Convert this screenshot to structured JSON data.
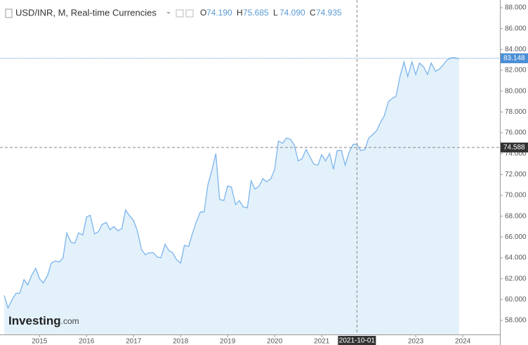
{
  "chart_data": {
    "type": "line",
    "title": "USD/INR, M, Real-time Currencies",
    "ohlc": [
      {
        "label": "O",
        "value": "74.190"
      },
      {
        "label": "H",
        "value": "75.685"
      },
      {
        "label": "L",
        "value": "74.090"
      },
      {
        "label": "C",
        "value": "74.935"
      }
    ],
    "logo": {
      "brand": "Investing",
      "suffix": ".com"
    },
    "color": "#7cb5ec",
    "fill_color": "#e3f1fb",
    "x": [
      2014.25,
      2014.33,
      2014.42,
      2014.5,
      2014.58,
      2014.67,
      2014.75,
      2014.83,
      2014.92,
      2015,
      2015.08,
      2015.17,
      2015.25,
      2015.33,
      2015.42,
      2015.5,
      2015.58,
      2015.67,
      2015.75,
      2015.83,
      2015.92,
      2016,
      2016.08,
      2016.17,
      2016.25,
      2016.33,
      2016.42,
      2016.5,
      2016.58,
      2016.67,
      2016.75,
      2016.83,
      2016.92,
      2017,
      2017.08,
      2017.17,
      2017.25,
      2017.33,
      2017.42,
      2017.5,
      2017.58,
      2017.67,
      2017.75,
      2017.83,
      2017.92,
      2018,
      2018.08,
      2018.17,
      2018.25,
      2018.33,
      2018.42,
      2018.5,
      2018.58,
      2018.67,
      2018.75,
      2018.83,
      2018.92,
      2019,
      2019.08,
      2019.17,
      2019.25,
      2019.33,
      2019.42,
      2019.5,
      2019.58,
      2019.67,
      2019.75,
      2019.83,
      2019.92,
      2020,
      2020.08,
      2020.17,
      2020.25,
      2020.33,
      2020.42,
      2020.5,
      2020.58,
      2020.67,
      2020.75,
      2020.83,
      2020.92,
      2021,
      2021.08,
      2021.17,
      2021.25,
      2021.33,
      2021.42,
      2021.5,
      2021.58,
      2021.67,
      2021.75,
      2021.83,
      2021.92,
      2022,
      2022.08,
      2022.17,
      2022.25,
      2022.33,
      2022.42,
      2022.5,
      2022.58,
      2022.67,
      2022.75,
      2022.83,
      2022.92,
      2023,
      2023.08,
      2023.17,
      2023.25,
      2023.33,
      2023.42,
      2023.5,
      2023.58,
      2023.67,
      2023.75,
      2023.83,
      2023.92
    ],
    "values": [
      60.4,
      59.2,
      60.0,
      60.6,
      60.6,
      61.9,
      61.4,
      62.3,
      63.0,
      62.0,
      61.6,
      62.3,
      63.5,
      63.7,
      63.6,
      64.0,
      66.4,
      65.5,
      65.4,
      66.4,
      66.2,
      67.9,
      68.1,
      66.3,
      66.5,
      67.2,
      67.4,
      66.7,
      67.0,
      66.6,
      66.8,
      68.6,
      68.0,
      67.6,
      66.6,
      64.8,
      64.3,
      64.5,
      64.5,
      64.1,
      64.0,
      65.3,
      64.7,
      64.5,
      63.8,
      63.5,
      65.2,
      65.1,
      66.3,
      67.4,
      68.4,
      68.4,
      71.0,
      72.5,
      74.0,
      69.6,
      69.5,
      70.9,
      70.8,
      69.1,
      69.5,
      68.9,
      68.8,
      71.4,
      70.6,
      70.9,
      71.6,
      71.3,
      71.6,
      72.5,
      75.2,
      75.0,
      75.5,
      75.4,
      74.8,
      73.3,
      73.5,
      74.4,
      73.7,
      73.0,
      72.9,
      73.9,
      73.3,
      74.0,
      72.5,
      74.3,
      74.3,
      72.9,
      74.1,
      74.9,
      74.9,
      74.3,
      74.4,
      75.5,
      75.8,
      76.2,
      77.0,
      77.6,
      79.0,
      79.3,
      79.5,
      81.5,
      82.8,
      81.4,
      82.8,
      81.6,
      82.7,
      82.3,
      81.6,
      82.7,
      81.9,
      82.1,
      82.5,
      83.0,
      83.2,
      83.2,
      83.1
    ],
    "xlim": [
      2014.16,
      2024.79
    ],
    "ylim": [
      56.65,
      88.74
    ],
    "xticks": [
      2015,
      2016,
      2017,
      2018,
      2019,
      2020,
      2021,
      2023,
      2024
    ],
    "yticks": [
      {
        "value": 58,
        "label": "58.000"
      },
      {
        "value": 60,
        "label": "60.000"
      },
      {
        "value": 62,
        "label": "62.000"
      },
      {
        "value": 64,
        "label": "64.000"
      },
      {
        "value": 66,
        "label": "66.000"
      },
      {
        "value": 68,
        "label": "68.000"
      },
      {
        "value": 70,
        "label": "70.000"
      },
      {
        "value": 72,
        "label": "72.000"
      },
      {
        "value": 74,
        "label": "74.000"
      },
      {
        "value": 76,
        "label": "76.000"
      },
      {
        "value": 78,
        "label": "78.000"
      },
      {
        "value": 80,
        "label": "80.000"
      },
      {
        "value": 82,
        "label": "82.000"
      },
      {
        "value": 84,
        "label": "84.000"
      },
      {
        "value": 86,
        "label": "86.000"
      },
      {
        "value": 88,
        "label": "88.000"
      }
    ],
    "price_line": 83.148,
    "crosshair": {
      "x": 2021.75,
      "x_label": "2021-10-01",
      "y": 74.588
    }
  }
}
